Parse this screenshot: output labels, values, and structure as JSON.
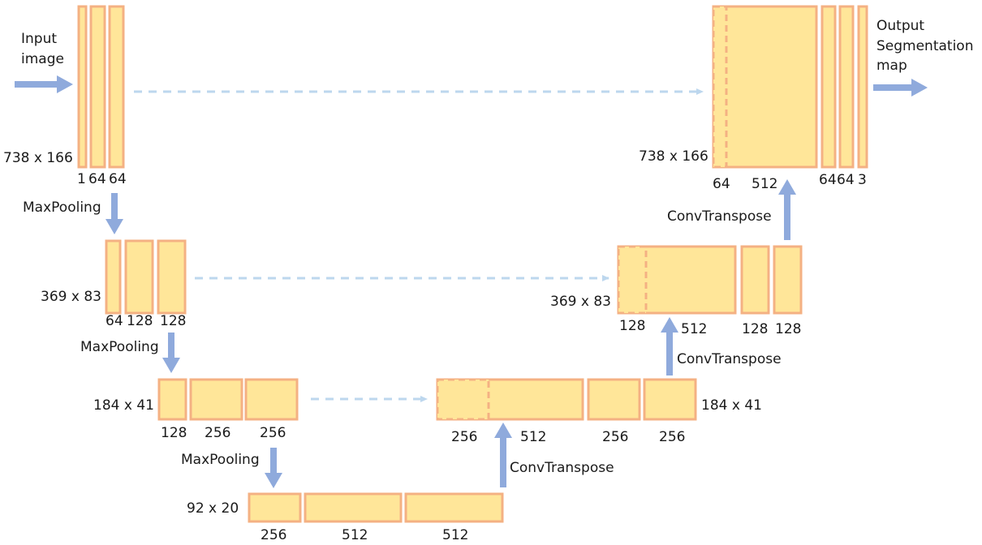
{
  "input_label_line1": "Input",
  "input_label_line2": "image",
  "output_label_line1": "Output",
  "output_label_line2": "Segmentation",
  "output_label_line3": "map",
  "encoder": {
    "level1": {
      "dims": "738 x 166",
      "ch1": "1",
      "ch2": "64",
      "ch3": "64"
    },
    "pool1": "MaxPooling",
    "level2": {
      "dims": "369 x 83",
      "ch1": "64",
      "ch2": "128",
      "ch3": "128"
    },
    "pool2": "MaxPooling",
    "level3": {
      "dims": "184 x 41",
      "ch1": "128",
      "ch2": "256",
      "ch3": "256"
    },
    "pool3": "MaxPooling"
  },
  "bottleneck": {
    "dims": "92 x 20",
    "ch1": "256",
    "ch2": "512",
    "ch3": "512"
  },
  "decoder": {
    "up1": "ConvTranspose",
    "level3": {
      "dims": "184 x 41",
      "skip": "256",
      "up": "512",
      "ch1": "256",
      "ch2": "256"
    },
    "up2": "ConvTranspose",
    "level2": {
      "dims": "369 x 83",
      "skip": "128",
      "up": "512",
      "ch1": "128",
      "ch2": "128"
    },
    "up3": "ConvTranspose",
    "level1": {
      "dims": "738 x 166",
      "skip": "64",
      "up": "512",
      "ch1": "64",
      "ch2": "64",
      "ch3": "3"
    }
  },
  "colors": {
    "block_fill": "#FFE699",
    "block_stroke": "#F4B183",
    "arrow": "#8FAADC",
    "skip_arrow": "#BDD7EE"
  }
}
